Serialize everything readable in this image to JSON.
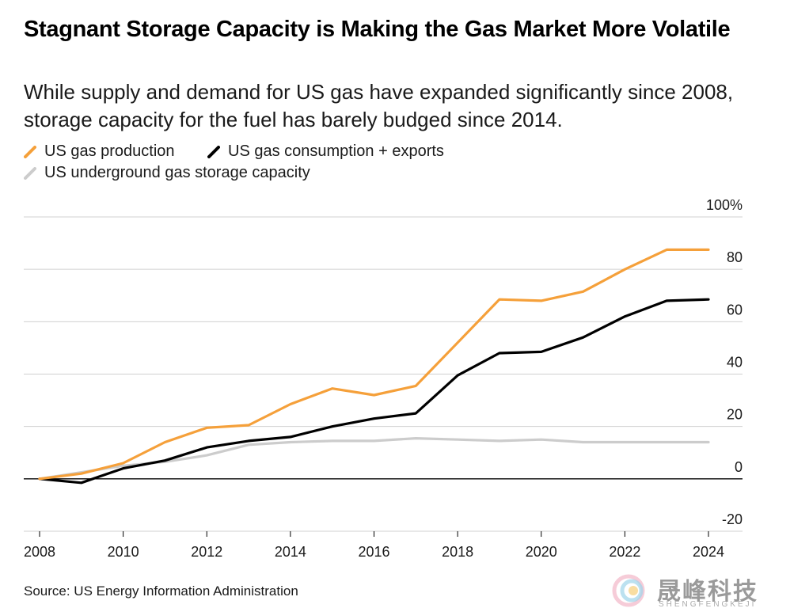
{
  "title": "Stagnant Storage Capacity is Making the Gas Market More Volatile",
  "subtitle": "While supply and demand for US gas have expanded significantly since 2008, storage capacity for the fuel has barely budged since 2014.",
  "source": "Source: US Energy Information Administration",
  "watermark": {
    "cn": "晟峰科技",
    "en": "SHENGFENGKEJI"
  },
  "chart_data": {
    "type": "line",
    "x": [
      2008,
      2009,
      2010,
      2011,
      2012,
      2013,
      2014,
      2015,
      2016,
      2017,
      2018,
      2019,
      2020,
      2021,
      2022,
      2023,
      2024
    ],
    "series": [
      {
        "name": "US gas production",
        "color": "#f5a03a",
        "values": [
          0,
          2,
          6,
          14,
          19.5,
          20.5,
          28.5,
          34.5,
          32,
          35.5,
          52,
          68.5,
          68,
          71.5,
          80,
          87.5,
          87.5
        ]
      },
      {
        "name": "US gas consumption + exports",
        "color": "#000000",
        "values": [
          0,
          -1.5,
          4,
          7,
          12,
          14.5,
          16,
          20,
          23,
          25,
          39.5,
          48,
          48.5,
          54,
          62,
          68,
          68.5
        ]
      },
      {
        "name": "US underground gas storage capacity",
        "color": "#cccccc",
        "values": [
          0,
          2.5,
          5,
          6.5,
          9,
          13,
          14,
          14.5,
          14.5,
          15.5,
          15,
          14.5,
          15,
          14,
          14,
          14,
          14
        ]
      }
    ],
    "yticks": [
      {
        "value": 100,
        "label": "100%"
      },
      {
        "value": 80,
        "label": "80"
      },
      {
        "value": 60,
        "label": "60"
      },
      {
        "value": 40,
        "label": "40"
      },
      {
        "value": 20,
        "label": "20"
      },
      {
        "value": 0,
        "label": "0"
      },
      {
        "value": -20,
        "label": "-20"
      }
    ],
    "xticks": [
      2008,
      2010,
      2012,
      2014,
      2016,
      2018,
      2020,
      2022,
      2024
    ],
    "ylim": [
      -20,
      100
    ],
    "xlim": [
      2008,
      2024
    ],
    "title": "Stagnant Storage Capacity is Making the Gas Market More Volatile",
    "xlabel": "",
    "ylabel": ""
  }
}
